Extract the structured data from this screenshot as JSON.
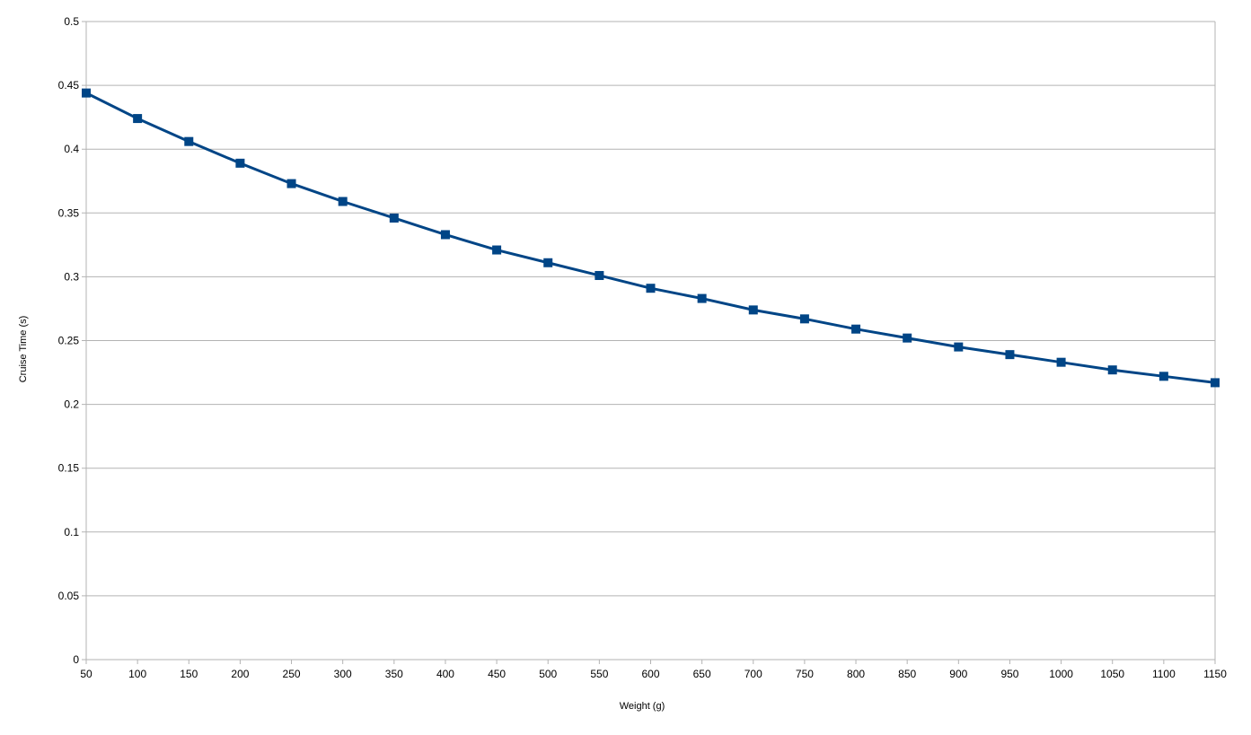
{
  "chart_data": {
    "type": "line",
    "title": "",
    "xlabel": "Weight (g)",
    "ylabel": "Cruise Time (s)",
    "xlim": [
      50,
      1150
    ],
    "ylim": [
      0,
      0.5
    ],
    "x_ticks": [
      50,
      100,
      150,
      200,
      250,
      300,
      350,
      400,
      450,
      500,
      550,
      600,
      650,
      700,
      750,
      800,
      850,
      900,
      950,
      1000,
      1050,
      1100,
      1150
    ],
    "y_ticks": [
      0,
      0.05,
      0.1,
      0.15,
      0.2,
      0.25,
      0.3,
      0.35,
      0.4,
      0.45,
      0.5
    ],
    "grid": "horizontal",
    "marker": "square",
    "color": "#004586",
    "series": [
      {
        "x": [
          50,
          100,
          150,
          200,
          250,
          300,
          350,
          400,
          450,
          500,
          550,
          600,
          650,
          700,
          750,
          800,
          850,
          900,
          950,
          1000,
          1050,
          1100,
          1150
        ],
        "values": [
          0.444,
          0.424,
          0.406,
          0.389,
          0.373,
          0.359,
          0.346,
          0.333,
          0.321,
          0.311,
          0.301,
          0.291,
          0.283,
          0.274,
          0.267,
          0.259,
          0.252,
          0.245,
          0.239,
          0.233,
          0.227,
          0.222,
          0.217
        ]
      }
    ]
  }
}
